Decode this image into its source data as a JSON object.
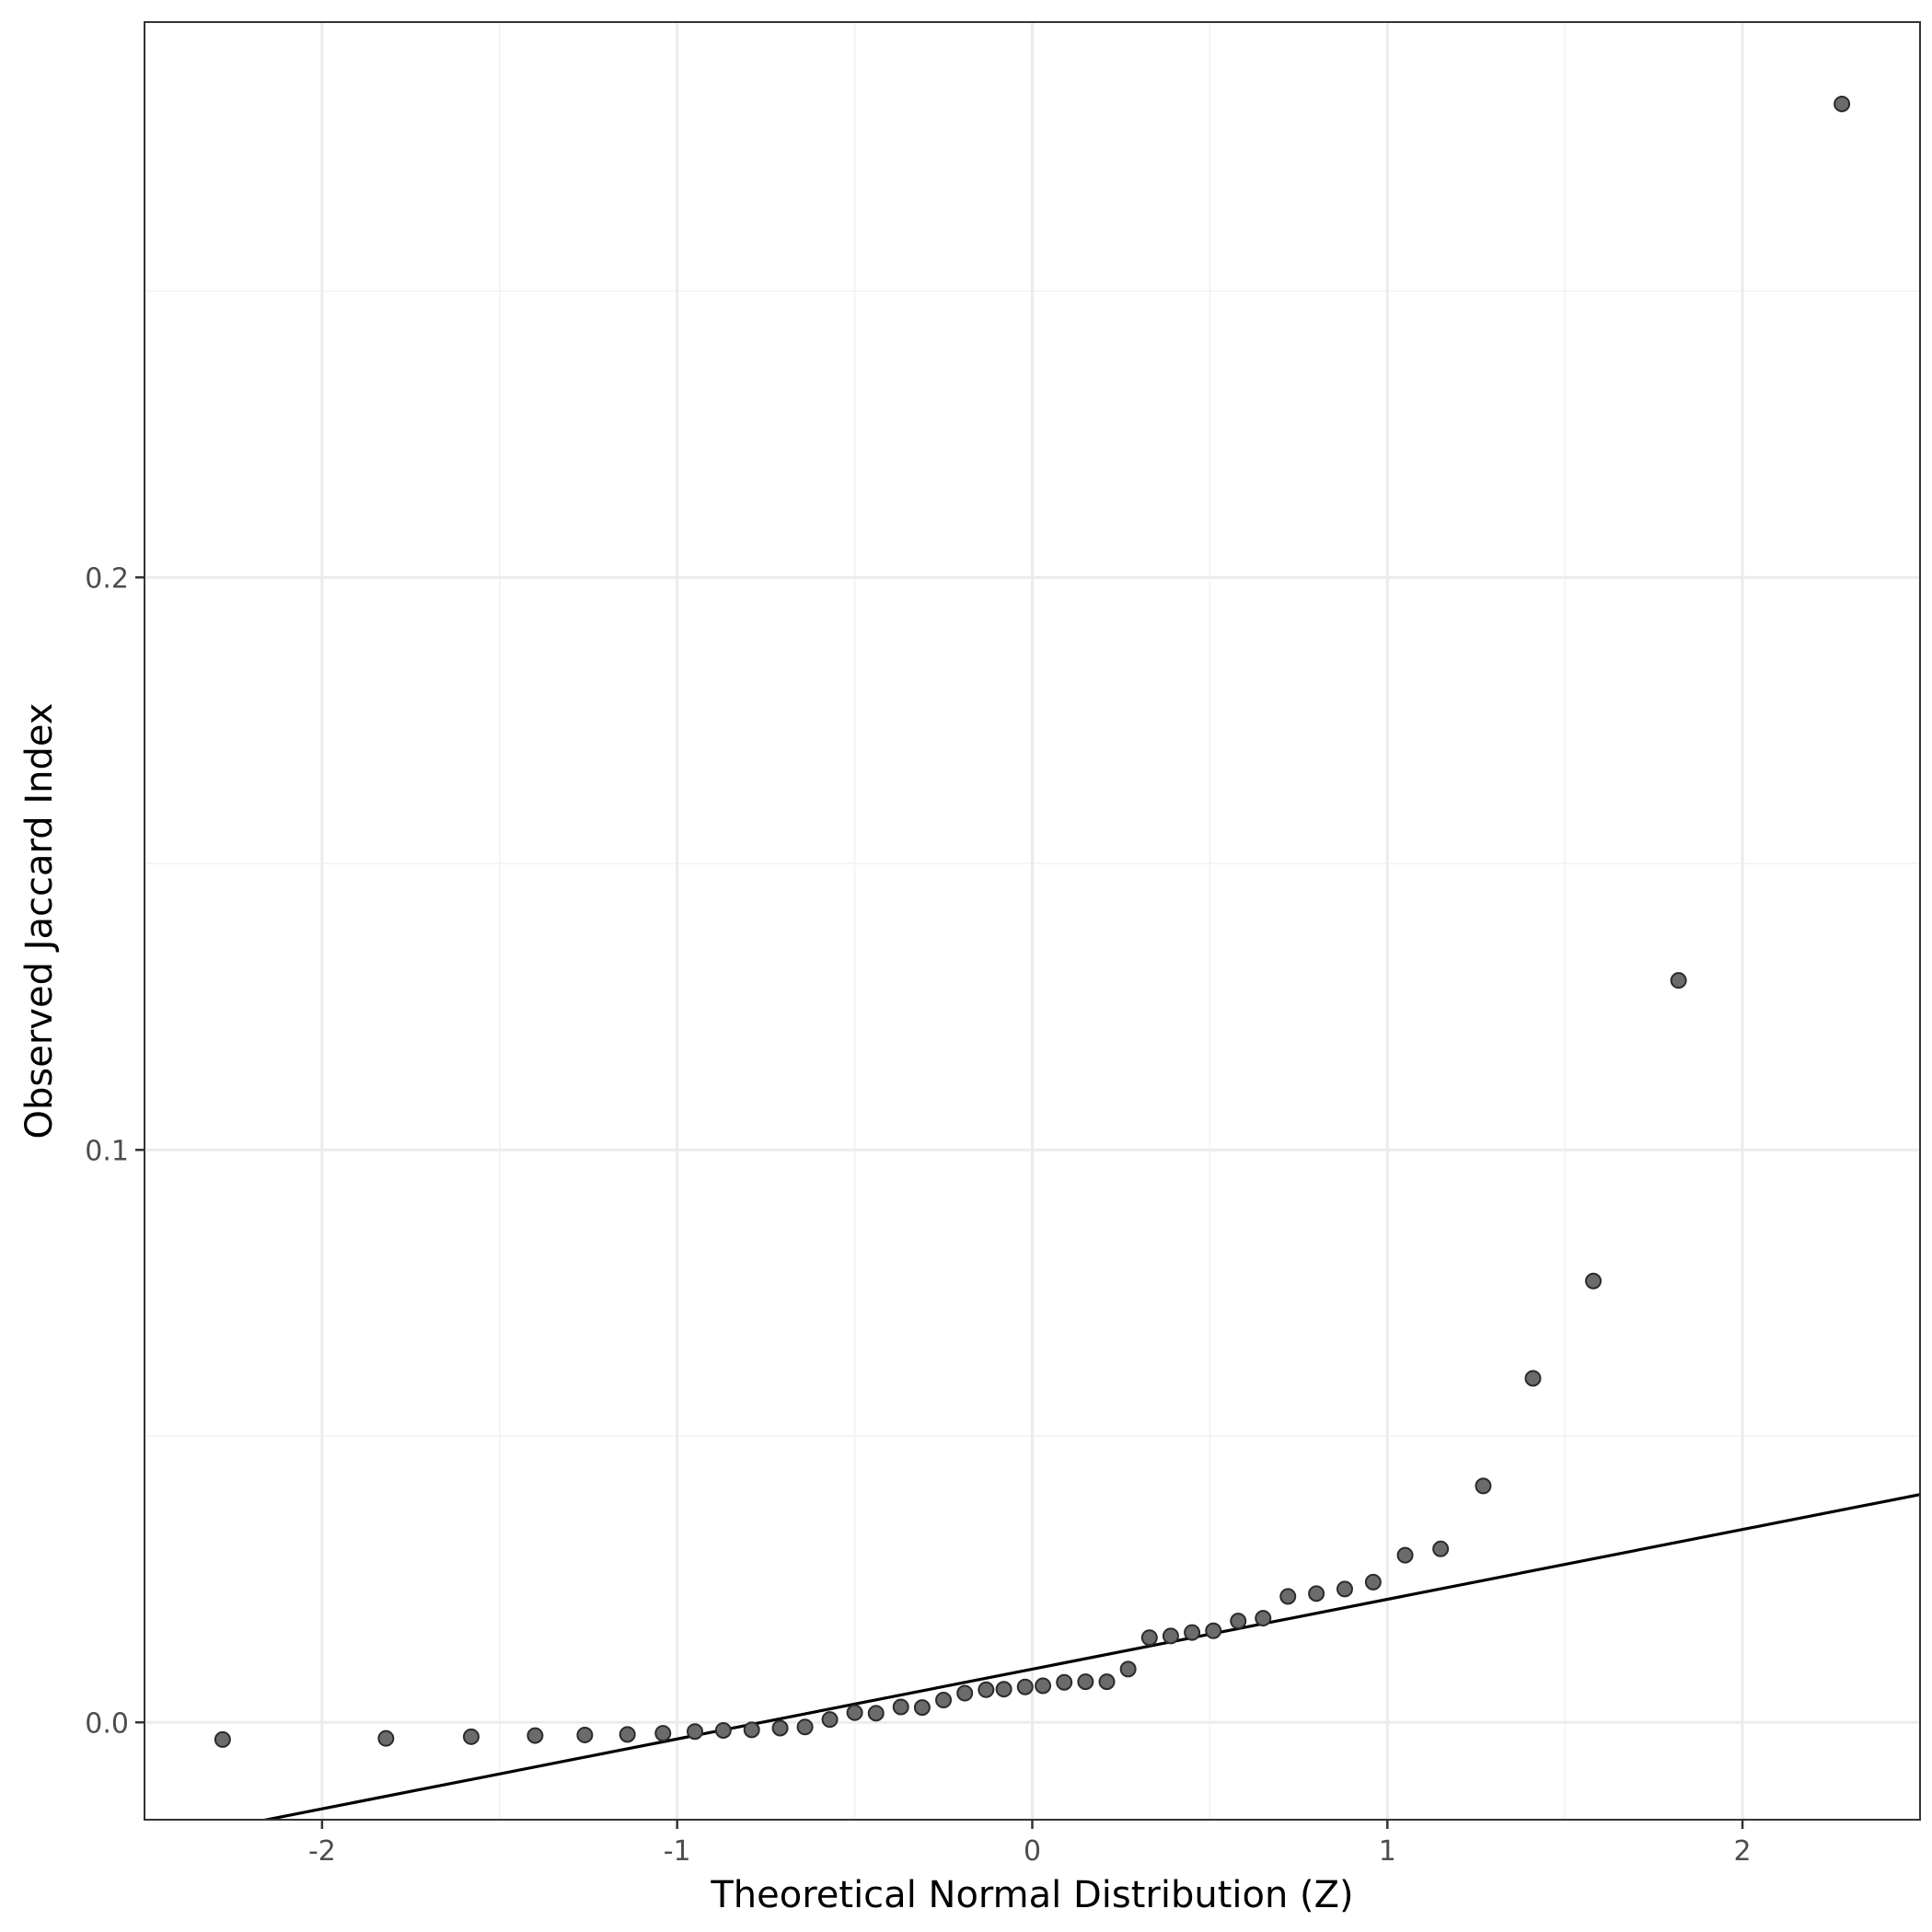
{
  "chart_data": {
    "type": "scatter",
    "title": "",
    "xlabel": "Theoretical Normal Distribution (Z)",
    "ylabel": "Observed Jaccard Index",
    "xlim": [
      -2.5,
      2.5
    ],
    "ylim": [
      -0.017,
      0.297
    ],
    "x_ticks": [
      {
        "value": -2,
        "label": "-2"
      },
      {
        "value": -1,
        "label": "-1"
      },
      {
        "value": 0,
        "label": "0"
      },
      {
        "value": 1,
        "label": "1"
      },
      {
        "value": 2,
        "label": "2"
      }
    ],
    "y_ticks": [
      {
        "value": 0.0,
        "label": "0.0"
      },
      {
        "value": 0.1,
        "label": "0.1"
      },
      {
        "value": 0.2,
        "label": "0.2"
      }
    ],
    "grid": true,
    "reference_line": {
      "intercept": 0.0093,
      "slope": 0.0122
    },
    "points": [
      {
        "x": -2.28,
        "y": -0.003
      },
      {
        "x": -1.82,
        "y": -0.0028
      },
      {
        "x": -1.58,
        "y": -0.0025
      },
      {
        "x": -1.4,
        "y": -0.0023
      },
      {
        "x": -1.26,
        "y": -0.0022
      },
      {
        "x": -1.14,
        "y": -0.0021
      },
      {
        "x": -1.04,
        "y": -0.0019
      },
      {
        "x": -0.95,
        "y": -0.0016
      },
      {
        "x": -0.87,
        "y": -0.0014
      },
      {
        "x": -0.79,
        "y": -0.0013
      },
      {
        "x": -0.71,
        "y": -0.001
      },
      {
        "x": -0.64,
        "y": -0.0008
      },
      {
        "x": -0.57,
        "y": 0.0005
      },
      {
        "x": -0.5,
        "y": 0.0017
      },
      {
        "x": -0.44,
        "y": 0.0016
      },
      {
        "x": -0.37,
        "y": 0.0027
      },
      {
        "x": -0.31,
        "y": 0.0026
      },
      {
        "x": -0.25,
        "y": 0.0039
      },
      {
        "x": -0.19,
        "y": 0.0051
      },
      {
        "x": -0.13,
        "y": 0.0057
      },
      {
        "x": -0.08,
        "y": 0.0058
      },
      {
        "x": -0.02,
        "y": 0.0062
      },
      {
        "x": 0.03,
        "y": 0.0064
      },
      {
        "x": 0.09,
        "y": 0.007
      },
      {
        "x": 0.15,
        "y": 0.0071
      },
      {
        "x": 0.21,
        "y": 0.0071
      },
      {
        "x": 0.27,
        "y": 0.0093
      },
      {
        "x": 0.33,
        "y": 0.0148
      },
      {
        "x": 0.39,
        "y": 0.0151
      },
      {
        "x": 0.45,
        "y": 0.0157
      },
      {
        "x": 0.51,
        "y": 0.016
      },
      {
        "x": 0.58,
        "y": 0.0177
      },
      {
        "x": 0.65,
        "y": 0.0182
      },
      {
        "x": 0.72,
        "y": 0.022
      },
      {
        "x": 0.8,
        "y": 0.0225
      },
      {
        "x": 0.88,
        "y": 0.0233
      },
      {
        "x": 0.96,
        "y": 0.0245
      },
      {
        "x": 1.05,
        "y": 0.0292
      },
      {
        "x": 1.15,
        "y": 0.0303
      },
      {
        "x": 1.27,
        "y": 0.0413
      },
      {
        "x": 1.41,
        "y": 0.0601
      },
      {
        "x": 1.58,
        "y": 0.0771
      },
      {
        "x": 1.82,
        "y": 0.1296
      },
      {
        "x": 2.28,
        "y": 0.2827
      }
    ],
    "point_color": "#6b6b6b",
    "point_stroke": "#2b2b2b",
    "line_color": "#000000",
    "grid_major_color": "#ebebeb",
    "grid_minor_color": "#f2f2f2",
    "panel_border_color": "#333333"
  }
}
